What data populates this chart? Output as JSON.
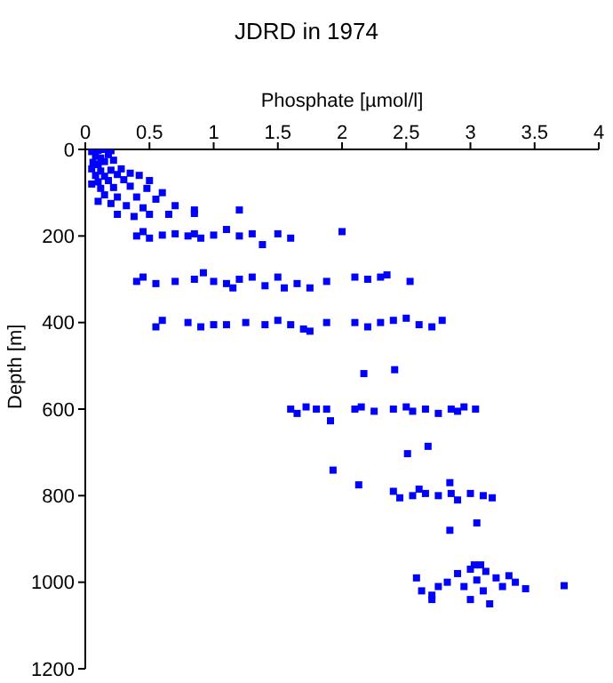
{
  "chart_data": {
    "type": "scatter",
    "title": "JDRD in 1974",
    "xlabel": "Phosphate [µmol/l]",
    "ylabel": "Depth [m]",
    "marker": "square",
    "grid": false,
    "legend": false,
    "xlim": [
      0,
      4
    ],
    "xticks": [
      0,
      0.5,
      1,
      1.5,
      2,
      2.5,
      3,
      3.5,
      4
    ],
    "ylim": [
      1200,
      0
    ],
    "yticks": [
      0,
      200,
      400,
      600,
      800,
      1000,
      1200
    ],
    "series": [
      {
        "color": "#0000ff",
        "x": [
          0.05,
          0.1,
          0.15,
          0.2,
          0.08,
          0.12,
          0.18,
          0.06,
          0.1,
          0.15,
          0.22,
          0.05,
          0.12,
          0.2,
          0.28,
          0.08,
          0.15,
          0.25,
          0.35,
          0.1,
          0.18,
          0.3,
          0.42,
          0.5,
          0.12,
          0.22,
          0.35,
          0.48,
          0.6,
          0.15,
          0.25,
          0.4,
          0.55,
          0.2,
          0.32,
          0.45,
          0.7,
          0.85,
          0.25,
          0.38,
          0.5,
          0.65,
          0.85,
          1.2,
          0.1,
          0.05,
          0.4,
          0.5,
          0.6,
          0.7,
          0.8,
          0.9,
          1.0,
          1.1,
          1.2,
          1.3,
          1.38,
          1.5,
          1.6,
          2.0,
          0.45,
          0.85,
          0.4,
          0.45,
          0.55,
          0.7,
          0.85,
          0.92,
          1.0,
          1.1,
          1.2,
          1.3,
          1.4,
          1.5,
          1.55,
          1.65,
          1.75,
          1.88,
          2.1,
          2.2,
          2.3,
          2.35,
          2.53,
          1.15,
          0.55,
          0.6,
          0.8,
          0.9,
          1.0,
          1.1,
          1.25,
          1.4,
          1.5,
          1.6,
          1.7,
          1.88,
          2.1,
          2.2,
          2.3,
          2.4,
          2.5,
          2.6,
          2.7,
          2.78,
          1.75,
          2.17,
          2.41,
          1.6,
          1.65,
          1.72,
          1.8,
          1.88,
          1.91,
          2.1,
          2.15,
          2.25,
          2.4,
          2.5,
          2.55,
          2.65,
          2.75,
          2.85,
          2.95,
          3.04,
          2.9,
          2.51,
          2.67,
          1.93,
          2.13,
          2.4,
          2.45,
          2.55,
          2.65,
          2.75,
          2.85,
          2.9,
          3.0,
          3.1,
          3.17,
          2.84,
          2.6,
          2.84,
          3.05,
          3.03,
          3.08,
          2.58,
          2.62,
          2.7,
          2.75,
          2.82,
          2.9,
          2.95,
          3.0,
          3.05,
          3.1,
          3.12,
          3.2,
          3.25,
          3.3,
          3.35,
          3.43,
          3.73,
          3.0,
          3.15,
          2.7
        ],
        "values": [
          5,
          2,
          0,
          3,
          15,
          20,
          12,
          30,
          35,
          28,
          25,
          45,
          50,
          48,
          45,
          60,
          62,
          58,
          55,
          75,
          72,
          70,
          60,
          72,
          90,
          88,
          85,
          90,
          100,
          105,
          110,
          110,
          115,
          125,
          130,
          135,
          130,
          140,
          150,
          155,
          150,
          150,
          148,
          140,
          120,
          80,
          200,
          205,
          198,
          195,
          200,
          205,
          198,
          185,
          200,
          195,
          220,
          195,
          205,
          190,
          190,
          195,
          305,
          295,
          310,
          305,
          300,
          285,
          305,
          310,
          300,
          295,
          315,
          295,
          320,
          310,
          320,
          305,
          295,
          300,
          295,
          290,
          305,
          320,
          410,
          395,
          400,
          410,
          405,
          405,
          400,
          405,
          395,
          405,
          415,
          400,
          400,
          410,
          400,
          395,
          390,
          405,
          410,
          395,
          420,
          518,
          509,
          600,
          610,
          595,
          600,
          600,
          627,
          600,
          595,
          605,
          600,
          595,
          605,
          600,
          610,
          600,
          595,
          600,
          605,
          703,
          686,
          741,
          775,
          790,
          805,
          800,
          795,
          800,
          795,
          810,
          795,
          800,
          805,
          770,
          785,
          880,
          863,
          960,
          960,
          990,
          1020,
          1030,
          1010,
          1000,
          980,
          1010,
          970,
          995,
          1020,
          975,
          990,
          1010,
          985,
          1000,
          1015,
          1008,
          1040,
          1050,
          1040
        ]
      }
    ]
  }
}
